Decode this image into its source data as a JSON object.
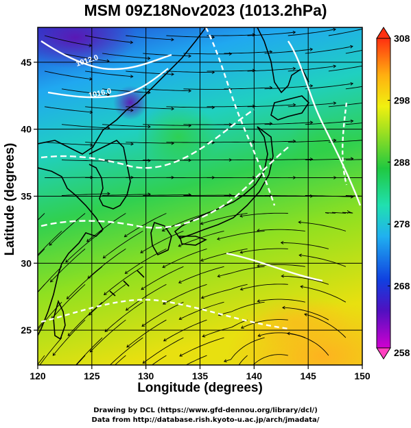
{
  "title": "MSM 09Z18Nov2023 (1013.2hPa)",
  "xlabel": "Longitude (degrees)",
  "ylabel": "Latitude  (degrees)",
  "credit_1": "Drawing by DCL (https://www.gfd-dennou.org/library/dcl/)",
  "credit_2": "Data from http://database.rish.kyoto-u.ac.jp/arch/jmadata/",
  "x_ticks": [
    "120",
    "125",
    "130",
    "135",
    "140",
    "145",
    "150"
  ],
  "y_ticks": [
    "25",
    "30",
    "35",
    "40",
    "45"
  ],
  "colorbar_ticks": [
    "258",
    "268",
    "278",
    "288",
    "298",
    "308"
  ],
  "contour_labels": [
    "1012.0",
    "1016.0"
  ],
  "map": {
    "lon_range": [
      120,
      150
    ],
    "lat_range": [
      22.4,
      47.6
    ],
    "variable": "temperature (K)",
    "color_range": [
      258,
      308
    ],
    "field": "surface temperature with streamlines and white pressure contours"
  },
  "colors": {
    "cold": "#7a00a8",
    "cool": "#1a4fe0",
    "mild": "#19d0d0",
    "neutral": "#22c840",
    "warm": "#d8e010",
    "hot": "#ff6a10",
    "contour": "#ffffff",
    "coast": "#000000"
  }
}
